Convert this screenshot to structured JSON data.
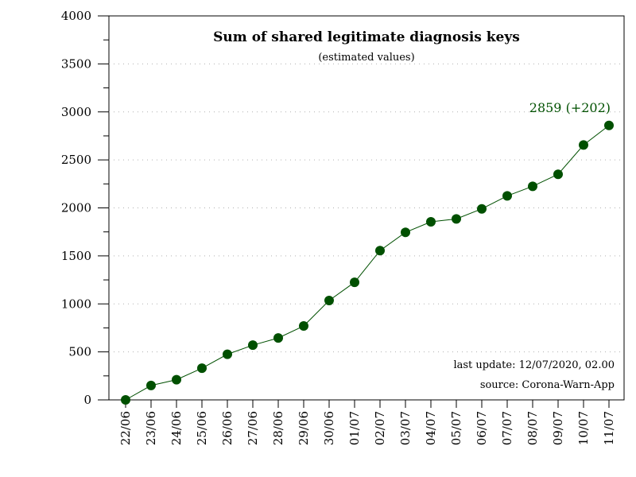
{
  "chart_data": {
    "type": "line",
    "title": "Sum of shared legitimate diagnosis keys",
    "subtitle": "(estimated values)",
    "xlabel": "",
    "ylabel": "",
    "ylim": [
      0,
      4000
    ],
    "yticks": [
      "0",
      "500",
      "1000",
      "1500",
      "2000",
      "2500",
      "3000",
      "3500",
      "4000"
    ],
    "ytick_values": [
      0,
      500,
      1000,
      1500,
      2000,
      2500,
      3000,
      3500,
      4000
    ],
    "grid": "horizontal-dotted",
    "categories": [
      "22/06",
      "23/06",
      "24/06",
      "25/06",
      "26/06",
      "27/06",
      "28/06",
      "29/06",
      "30/06",
      "01/07",
      "02/07",
      "03/07",
      "04/07",
      "05/07",
      "06/07",
      "07/07",
      "08/07",
      "09/07",
      "10/07",
      "11/07"
    ],
    "series": [
      {
        "values": [
          0,
          150,
          210,
          330,
          475,
          570,
          645,
          770,
          1035,
          1225,
          1555,
          1745,
          1855,
          1885,
          1990,
          2125,
          2225,
          2350,
          2655,
          2859
        ]
      }
    ],
    "annotation": "2859 (+202)",
    "last_update": "last update: 12/07/2020, 02.00",
    "source": "source: Corona-Warn-App",
    "colors": {
      "series": "#005000",
      "grid": "#b0b0b0",
      "axis": "#000000"
    }
  }
}
